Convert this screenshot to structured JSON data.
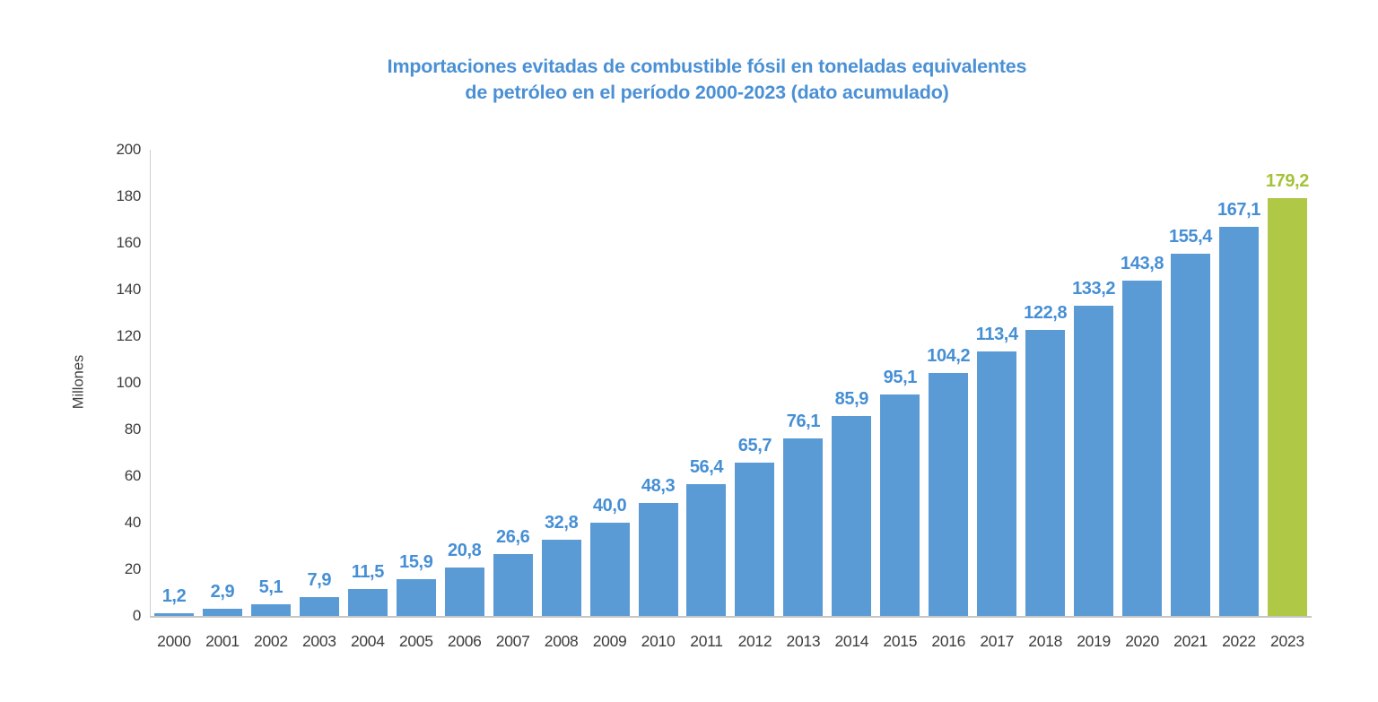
{
  "title": {
    "line1": "Importaciones evitadas de combustible fósil en toneladas equivalentes",
    "line2": "de petróleo en el período 2000-2023 (dato acumulado)",
    "color": "#4a90d5"
  },
  "chart_data": {
    "type": "bar",
    "categories": [
      "2000",
      "2001",
      "2002",
      "2003",
      "2004",
      "2005",
      "2006",
      "2007",
      "2008",
      "2009",
      "2010",
      "2011",
      "2012",
      "2013",
      "2014",
      "2015",
      "2016",
      "2017",
      "2018",
      "2019",
      "2020",
      "2021",
      "2022",
      "2023"
    ],
    "values": [
      1.2,
      2.9,
      5.1,
      7.9,
      11.5,
      15.9,
      20.8,
      26.6,
      32.8,
      40.0,
      48.3,
      56.4,
      65.7,
      76.1,
      85.9,
      95.1,
      104.2,
      113.4,
      122.8,
      133.2,
      143.8,
      155.4,
      167.1,
      179.2
    ],
    "value_labels": [
      "1,2",
      "2,9",
      "5,1",
      "7,9",
      "11,5",
      "15,9",
      "20,8",
      "26,6",
      "32,8",
      "40,0",
      "48,3",
      "56,4",
      "65,7",
      "76,1",
      "85,9",
      "95,1",
      "104,2",
      "113,4",
      "122,8",
      "133,2",
      "143,8",
      "155,4",
      "167,1",
      "179,2"
    ],
    "ylabel": "Millones",
    "xlabel": "",
    "ylim": [
      0,
      200
    ],
    "yticks": [
      0,
      20,
      40,
      60,
      80,
      100,
      120,
      140,
      160,
      180,
      200
    ],
    "grid": false,
    "legend": "none",
    "bar_color": "#5b9bd5",
    "bar_label_color": "#468fd5",
    "highlight_index": 23,
    "highlight_bar_color": "#afc845",
    "highlight_label_color": "#a4c339",
    "tick_color": "#3d3d3d"
  }
}
